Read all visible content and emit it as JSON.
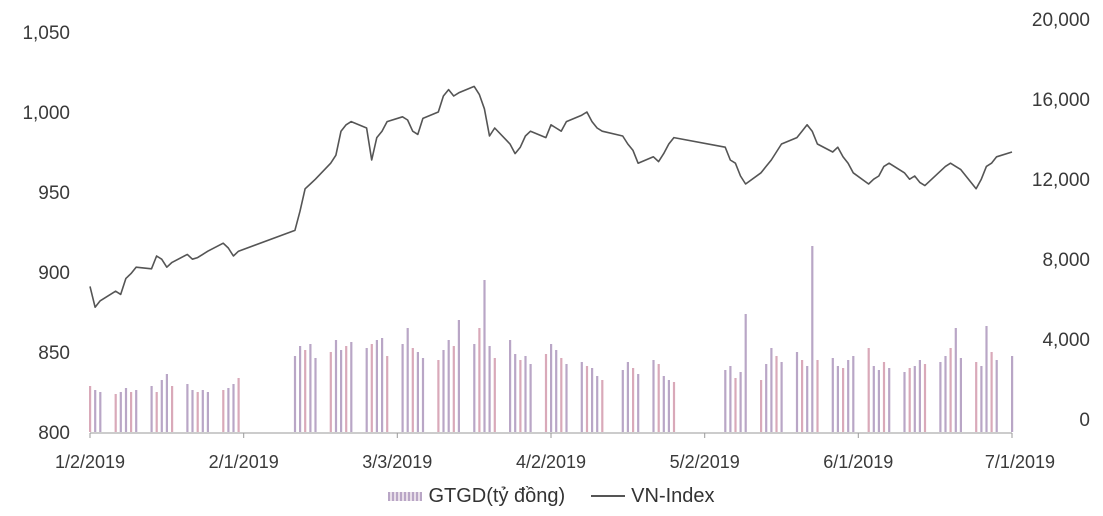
{
  "chart_data": {
    "type": "bar+line",
    "title": "",
    "x_ticks": [
      "1/2/2019",
      "2/1/2019",
      "3/3/2019",
      "4/2/2019",
      "5/2/2019",
      "6/1/2019",
      "7/1/2019"
    ],
    "x_range": [
      "2019-01-02",
      "2019-07-01"
    ],
    "y_left": {
      "range": [
        800,
        1050
      ],
      "ticks": [
        "800",
        "850",
        "900",
        "950",
        "1,000",
        "1,050"
      ]
    },
    "y_right": {
      "range": [
        0,
        20000
      ],
      "ticks": [
        "0",
        "4,000",
        "8,000",
        "12,000",
        "16,000",
        "20,000"
      ]
    },
    "legend": {
      "position": "bottom",
      "bar_label": "GTGD(tỷ đồng)",
      "line_label": "VN-Index"
    },
    "colors": {
      "line": "#555555",
      "bar": "#b9a6c6",
      "bar_alt": "#d9a9b9"
    },
    "series": [
      {
        "name": "GTGD(tỷ đồng)",
        "axis": "right",
        "kind": "bar",
        "points": [
          [
            "2019-01-02",
            2300
          ],
          [
            "2019-01-03",
            2100
          ],
          [
            "2019-01-04",
            2000
          ],
          [
            "2019-01-07",
            1900
          ],
          [
            "2019-01-08",
            2000
          ],
          [
            "2019-01-09",
            2200
          ],
          [
            "2019-01-10",
            2000
          ],
          [
            "2019-01-11",
            2100
          ],
          [
            "2019-01-14",
            2300
          ],
          [
            "2019-01-15",
            2000
          ],
          [
            "2019-01-16",
            2600
          ],
          [
            "2019-01-17",
            2900
          ],
          [
            "2019-01-18",
            2300
          ],
          [
            "2019-01-21",
            2400
          ],
          [
            "2019-01-22",
            2100
          ],
          [
            "2019-01-23",
            2000
          ],
          [
            "2019-01-24",
            2100
          ],
          [
            "2019-01-25",
            2000
          ],
          [
            "2019-01-28",
            2100
          ],
          [
            "2019-01-29",
            2200
          ],
          [
            "2019-01-30",
            2400
          ],
          [
            "2019-01-31",
            2700
          ],
          [
            "2019-02-11",
            3800
          ],
          [
            "2019-02-12",
            4300
          ],
          [
            "2019-02-13",
            4100
          ],
          [
            "2019-02-14",
            4400
          ],
          [
            "2019-02-15",
            3700
          ],
          [
            "2019-02-18",
            4000
          ],
          [
            "2019-02-19",
            4600
          ],
          [
            "2019-02-20",
            4100
          ],
          [
            "2019-02-21",
            4300
          ],
          [
            "2019-02-22",
            4500
          ],
          [
            "2019-02-25",
            4200
          ],
          [
            "2019-02-26",
            4400
          ],
          [
            "2019-02-27",
            4600
          ],
          [
            "2019-02-28",
            4700
          ],
          [
            "2019-03-01",
            3800
          ],
          [
            "2019-03-04",
            4400
          ],
          [
            "2019-03-05",
            5200
          ],
          [
            "2019-03-06",
            4200
          ],
          [
            "2019-03-07",
            4000
          ],
          [
            "2019-03-08",
            3700
          ],
          [
            "2019-03-11",
            3600
          ],
          [
            "2019-03-12",
            4100
          ],
          [
            "2019-03-13",
            4600
          ],
          [
            "2019-03-14",
            4300
          ],
          [
            "2019-03-15",
            5600
          ],
          [
            "2019-03-18",
            4400
          ],
          [
            "2019-03-19",
            5200
          ],
          [
            "2019-03-20",
            7600
          ],
          [
            "2019-03-21",
            4300
          ],
          [
            "2019-03-22",
            3700
          ],
          [
            "2019-03-25",
            4600
          ],
          [
            "2019-03-26",
            3900
          ],
          [
            "2019-03-27",
            3600
          ],
          [
            "2019-03-28",
            3800
          ],
          [
            "2019-03-29",
            3400
          ],
          [
            "2019-04-01",
            3900
          ],
          [
            "2019-04-02",
            4400
          ],
          [
            "2019-04-03",
            4100
          ],
          [
            "2019-04-04",
            3700
          ],
          [
            "2019-04-05",
            3400
          ],
          [
            "2019-04-08",
            3500
          ],
          [
            "2019-04-09",
            3300
          ],
          [
            "2019-04-10",
            3200
          ],
          [
            "2019-04-11",
            2800
          ],
          [
            "2019-04-12",
            2600
          ],
          [
            "2019-04-16",
            3100
          ],
          [
            "2019-04-17",
            3500
          ],
          [
            "2019-04-18",
            3200
          ],
          [
            "2019-04-19",
            2900
          ],
          [
            "2019-04-22",
            3600
          ],
          [
            "2019-04-23",
            3400
          ],
          [
            "2019-04-24",
            2800
          ],
          [
            "2019-04-25",
            2600
          ],
          [
            "2019-04-26",
            2500
          ],
          [
            "2019-05-06",
            3100
          ],
          [
            "2019-05-07",
            3300
          ],
          [
            "2019-05-08",
            2700
          ],
          [
            "2019-05-09",
            3000
          ],
          [
            "2019-05-10",
            5900
          ],
          [
            "2019-05-13",
            2600
          ],
          [
            "2019-05-14",
            3400
          ],
          [
            "2019-05-15",
            4200
          ],
          [
            "2019-05-16",
            3800
          ],
          [
            "2019-05-17",
            3500
          ],
          [
            "2019-05-20",
            4000
          ],
          [
            "2019-05-21",
            3600
          ],
          [
            "2019-05-22",
            3300
          ],
          [
            "2019-05-23",
            9300
          ],
          [
            "2019-05-24",
            3600
          ],
          [
            "2019-05-27",
            3700
          ],
          [
            "2019-05-28",
            3300
          ],
          [
            "2019-05-29",
            3200
          ],
          [
            "2019-05-30",
            3600
          ],
          [
            "2019-05-31",
            3800
          ],
          [
            "2019-06-03",
            4200
          ],
          [
            "2019-06-04",
            3300
          ],
          [
            "2019-06-05",
            3100
          ],
          [
            "2019-06-06",
            3500
          ],
          [
            "2019-06-07",
            3200
          ],
          [
            "2019-06-10",
            3000
          ],
          [
            "2019-06-11",
            3200
          ],
          [
            "2019-06-12",
            3300
          ],
          [
            "2019-06-13",
            3600
          ],
          [
            "2019-06-14",
            3400
          ],
          [
            "2019-06-17",
            3500
          ],
          [
            "2019-06-18",
            3800
          ],
          [
            "2019-06-19",
            4200
          ],
          [
            "2019-06-20",
            5200
          ],
          [
            "2019-06-21",
            3700
          ],
          [
            "2019-06-24",
            3500
          ],
          [
            "2019-06-25",
            3300
          ],
          [
            "2019-06-26",
            5300
          ],
          [
            "2019-06-27",
            4000
          ],
          [
            "2019-06-28",
            3600
          ],
          [
            "2019-07-01",
            3800
          ]
        ]
      },
      {
        "name": "VN-Index",
        "axis": "left",
        "kind": "line",
        "points": [
          [
            "2019-01-02",
            891
          ],
          [
            "2019-01-03",
            878
          ],
          [
            "2019-01-04",
            882
          ],
          [
            "2019-01-07",
            888
          ],
          [
            "2019-01-08",
            886
          ],
          [
            "2019-01-09",
            896
          ],
          [
            "2019-01-10",
            899
          ],
          [
            "2019-01-11",
            903
          ],
          [
            "2019-01-14",
            902
          ],
          [
            "2019-01-15",
            910
          ],
          [
            "2019-01-16",
            908
          ],
          [
            "2019-01-17",
            903
          ],
          [
            "2019-01-18",
            906
          ],
          [
            "2019-01-21",
            911
          ],
          [
            "2019-01-22",
            908
          ],
          [
            "2019-01-23",
            909
          ],
          [
            "2019-01-24",
            911
          ],
          [
            "2019-01-25",
            913
          ],
          [
            "2019-01-28",
            918
          ],
          [
            "2019-01-29",
            915
          ],
          [
            "2019-01-30",
            910
          ],
          [
            "2019-01-31",
            913
          ],
          [
            "2019-02-11",
            926
          ],
          [
            "2019-02-12",
            938
          ],
          [
            "2019-02-13",
            952
          ],
          [
            "2019-02-14",
            955
          ],
          [
            "2019-02-15",
            958
          ],
          [
            "2019-02-18",
            968
          ],
          [
            "2019-02-19",
            973
          ],
          [
            "2019-02-20",
            988
          ],
          [
            "2019-02-21",
            992
          ],
          [
            "2019-02-22",
            994
          ],
          [
            "2019-02-25",
            990
          ],
          [
            "2019-02-26",
            970
          ],
          [
            "2019-02-27",
            984
          ],
          [
            "2019-02-28",
            988
          ],
          [
            "2019-03-01",
            994
          ],
          [
            "2019-03-04",
            997
          ],
          [
            "2019-03-05",
            995
          ],
          [
            "2019-03-06",
            988
          ],
          [
            "2019-03-07",
            986
          ],
          [
            "2019-03-08",
            996
          ],
          [
            "2019-03-11",
            1000
          ],
          [
            "2019-03-12",
            1010
          ],
          [
            "2019-03-13",
            1014
          ],
          [
            "2019-03-14",
            1010
          ],
          [
            "2019-03-15",
            1012
          ],
          [
            "2019-03-18",
            1016
          ],
          [
            "2019-03-19",
            1011
          ],
          [
            "2019-03-20",
            1002
          ],
          [
            "2019-03-21",
            985
          ],
          [
            "2019-03-22",
            990
          ],
          [
            "2019-03-25",
            980
          ],
          [
            "2019-03-26",
            974
          ],
          [
            "2019-03-27",
            978
          ],
          [
            "2019-03-28",
            985
          ],
          [
            "2019-03-29",
            988
          ],
          [
            "2019-04-01",
            984
          ],
          [
            "2019-04-02",
            992
          ],
          [
            "2019-04-03",
            990
          ],
          [
            "2019-04-04",
            988
          ],
          [
            "2019-04-05",
            994
          ],
          [
            "2019-04-08",
            998
          ],
          [
            "2019-04-09",
            1000
          ],
          [
            "2019-04-10",
            994
          ],
          [
            "2019-04-11",
            990
          ],
          [
            "2019-04-12",
            988
          ],
          [
            "2019-04-16",
            985
          ],
          [
            "2019-04-17",
            980
          ],
          [
            "2019-04-18",
            976
          ],
          [
            "2019-04-19",
            968
          ],
          [
            "2019-04-22",
            972
          ],
          [
            "2019-04-23",
            969
          ],
          [
            "2019-04-24",
            974
          ],
          [
            "2019-04-25",
            980
          ],
          [
            "2019-04-26",
            984
          ],
          [
            "2019-05-06",
            978
          ],
          [
            "2019-05-07",
            970
          ],
          [
            "2019-05-08",
            968
          ],
          [
            "2019-05-09",
            960
          ],
          [
            "2019-05-10",
            955
          ],
          [
            "2019-05-13",
            962
          ],
          [
            "2019-05-14",
            966
          ],
          [
            "2019-05-15",
            970
          ],
          [
            "2019-05-16",
            975
          ],
          [
            "2019-05-17",
            980
          ],
          [
            "2019-05-20",
            984
          ],
          [
            "2019-05-21",
            988
          ],
          [
            "2019-05-22",
            992
          ],
          [
            "2019-05-23",
            988
          ],
          [
            "2019-05-24",
            980
          ],
          [
            "2019-05-27",
            975
          ],
          [
            "2019-05-28",
            978
          ],
          [
            "2019-05-29",
            972
          ],
          [
            "2019-05-30",
            968
          ],
          [
            "2019-05-31",
            962
          ],
          [
            "2019-06-03",
            955
          ],
          [
            "2019-06-04",
            958
          ],
          [
            "2019-06-05",
            960
          ],
          [
            "2019-06-06",
            966
          ],
          [
            "2019-06-07",
            968
          ],
          [
            "2019-06-10",
            962
          ],
          [
            "2019-06-11",
            958
          ],
          [
            "2019-06-12",
            960
          ],
          [
            "2019-06-13",
            956
          ],
          [
            "2019-06-14",
            954
          ],
          [
            "2019-06-17",
            963
          ],
          [
            "2019-06-18",
            966
          ],
          [
            "2019-06-19",
            968
          ],
          [
            "2019-06-20",
            966
          ],
          [
            "2019-06-21",
            964
          ],
          [
            "2019-06-24",
            952
          ],
          [
            "2019-06-25",
            958
          ],
          [
            "2019-06-26",
            966
          ],
          [
            "2019-06-27",
            968
          ],
          [
            "2019-06-28",
            972
          ],
          [
            "2019-07-01",
            975
          ]
        ]
      }
    ]
  }
}
